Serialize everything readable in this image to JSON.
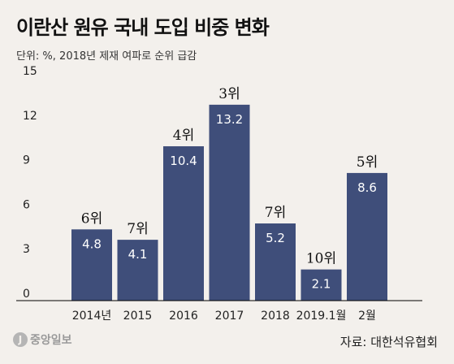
{
  "header": {
    "title": "이란산 원유 국내 도입 비중 변화",
    "unit": "단위: %, 2018년 제재 여파로 순위 급감"
  },
  "footer": {
    "logo_text": "중앙일보",
    "source": "자료: 대한석유협회"
  },
  "colors": {
    "bar": "#3f4e7a",
    "background": "#f3f0ec",
    "bar_label": "#ffffff",
    "rank_label": "#111111",
    "axis_text": "#222222",
    "baseline": "#000000"
  },
  "chart_data": {
    "type": "bar",
    "title": "이란산 원유 국내 도입 비중 변화",
    "subtitle": "단위: %, 2018년 제재 여파로 순위 급감",
    "categories": [
      "2014년",
      "2015",
      "2016",
      "2017",
      "2018",
      "2019.1월",
      "2월"
    ],
    "values": [
      4.8,
      4.1,
      10.4,
      13.2,
      5.2,
      2.1,
      8.6
    ],
    "value_labels": [
      "4.8",
      "4.1",
      "10.4",
      "13.2",
      "5.2",
      "2.1",
      "8.6"
    ],
    "rank_labels": [
      "6위",
      "7위",
      "4위",
      "3위",
      "7위",
      "10위",
      "5위"
    ],
    "yticks": [
      0,
      3,
      6,
      9,
      12,
      15
    ],
    "ylim": [
      0,
      15
    ],
    "grid": false,
    "legend": "none"
  }
}
